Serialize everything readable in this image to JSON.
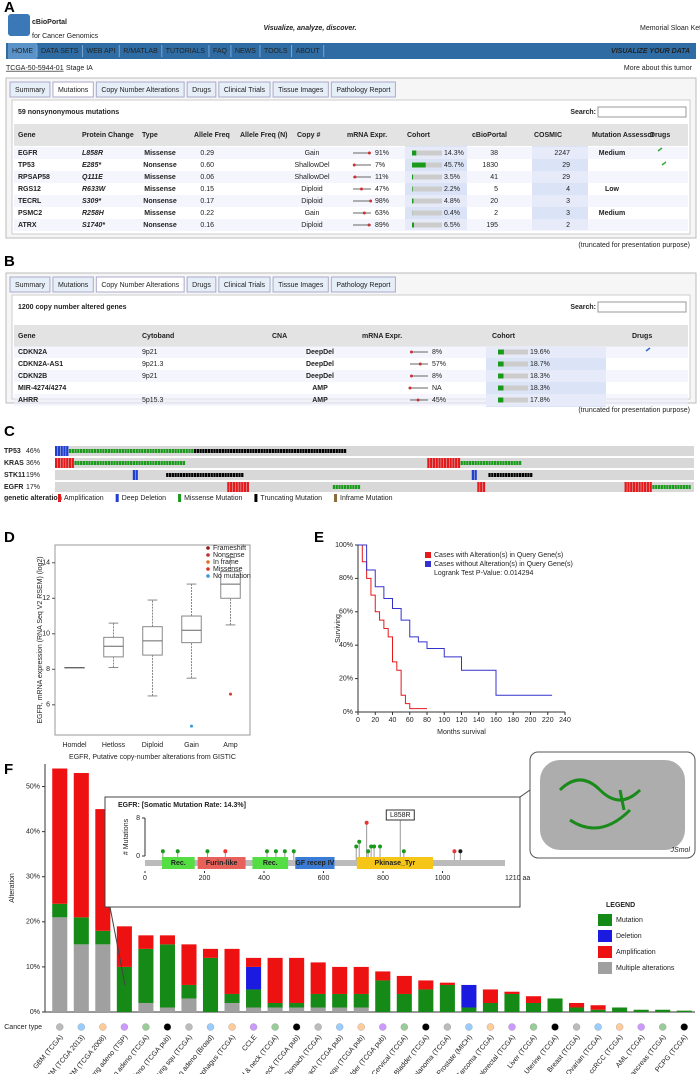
{
  "panel_a": {
    "label": "A",
    "logo": "cBioPortal",
    "logo_sub": "for Cancer Genomics",
    "tagline": "Visualize, analyze, discover.",
    "institution": "Memorial Sloan Kettering Cancer Center",
    "nav": [
      "HOME",
      "DATA SETS",
      "WEB API",
      "R/MATLAB",
      "TUTORIALS",
      "FAQ",
      "NEWS",
      "TOOLS",
      "ABOUT"
    ],
    "nav_right": "VISUALIZE YOUR DATA",
    "sample_id": "TCGA-50-5944-01",
    "stage": "Stage IA",
    "more": "More about this tumor",
    "tabs": [
      "Summary",
      "Mutations",
      "Copy Number Alterations",
      "Drugs",
      "Clinical Trials",
      "Tissue Images",
      "Pathology Report"
    ],
    "table_title": "59 nonsynonymous mutations",
    "search": "Search:",
    "columns": [
      "Gene",
      "Protein Change",
      "Type",
      "Allele Freq",
      "Allele Freq (N)",
      "Copy #",
      "mRNA Expr.",
      "Cohort",
      "cBioPortal",
      "COSMIC",
      "Mutation Assessor",
      "Drugs"
    ],
    "rows": [
      {
        "gene": "EGFR",
        "protein": "L858R",
        "type": "Missense",
        "af": "0.29",
        "copy": "Gain",
        "mrna": "91%",
        "cohort": "14.3%",
        "cbio": "38",
        "cosmic": "2247",
        "assessor": "Medium"
      },
      {
        "gene": "TP53",
        "protein": "E285*",
        "type": "Nonsense",
        "af": "0.60",
        "copy": "ShallowDel",
        "mrna": "7%",
        "cohort": "45.7%",
        "cbio": "1830",
        "cosmic": "29"
      },
      {
        "gene": "RPSAP58",
        "protein": "Q111E",
        "type": "Missense",
        "af": "0.06",
        "copy": "ShallowDel",
        "mrna": "11%",
        "cohort": "3.5%",
        "cbio": "41",
        "cosmic": "29"
      },
      {
        "gene": "RGS12",
        "protein": "R633W",
        "type": "Missense",
        "af": "0.15",
        "copy": "Diploid",
        "mrna": "47%",
        "cohort": "2.2%",
        "cbio": "5",
        "cosmic": "4",
        "assessor": "Low"
      },
      {
        "gene": "TECRL",
        "protein": "S309*",
        "type": "Nonsense",
        "af": "0.17",
        "copy": "Diploid",
        "mrna": "98%",
        "cohort": "4.8%",
        "cbio": "20",
        "cosmic": "3"
      },
      {
        "gene": "PSMC2",
        "protein": "R258H",
        "type": "Missense",
        "af": "0.22",
        "copy": "Gain",
        "mrna": "63%",
        "cohort": "0.4%",
        "cbio": "2",
        "cosmic": "3",
        "assessor": "Medium"
      },
      {
        "gene": "ATRX",
        "protein": "S1740*",
        "type": "Nonsense",
        "af": "0.16",
        "copy": "Diploid",
        "mrna": "89%",
        "cohort": "6.5%",
        "cbio": "195",
        "cosmic": "2"
      }
    ],
    "note": "(truncated for presentation purpose)"
  },
  "panel_b": {
    "label": "B",
    "tabs": [
      "Summary",
      "Mutations",
      "Copy Number Alterations",
      "Drugs",
      "Clinical Trials",
      "Tissue Images",
      "Pathology Report"
    ],
    "table_title": "1200 copy number altered genes",
    "search": "Search:",
    "columns": [
      "Gene",
      "Cytoband",
      "CNA",
      "mRNA Expr.",
      "Cohort",
      "Drugs"
    ],
    "rows": [
      {
        "gene": "CDKN2A",
        "cytoband": "9p21",
        "cna": "DeepDel",
        "mrna": "8%",
        "cohort": "19.6%"
      },
      {
        "gene": "CDKN2A-AS1",
        "cytoband": "9p21.3",
        "cna": "DeepDel",
        "mrna": "57%",
        "cohort": "18.7%"
      },
      {
        "gene": "CDKN2B",
        "cytoband": "9p21",
        "cna": "DeepDel",
        "mrna": "8%",
        "cohort": "18.3%"
      },
      {
        "gene": "MIR-4274/4274",
        "cna": "AMP",
        "mrna": "NA",
        "cohort": "18.3%"
      },
      {
        "gene": "AHRR",
        "cytoband": "5p15.3",
        "cna": "AMP",
        "mrna": "45%",
        "cohort": "17.8%"
      }
    ],
    "note": "(truncated for presentation purpose)"
  },
  "value_colors": {
    "Missense": "#1a8a1a",
    "Nonsense": "#d01010",
    "Gain": "#d01010",
    "ShallowDel": "#2040c0",
    "Diploid": "#222222",
    "DeepDel": "#1030d0",
    "AMP": "#e01010",
    "Medium": "#9a7a10",
    "Low": "#8a9a10"
  },
  "panel_c": {
    "label": "C",
    "samples": 230,
    "genes": [
      {
        "name": "TP53",
        "pct": "46%",
        "segments": [
          [
            0,
            5,
            "del"
          ],
          [
            5,
            45,
            "miss"
          ],
          [
            50,
            55,
            "trunc"
          ]
        ]
      },
      {
        "name": "KRAS",
        "pct": "36%",
        "segments": [
          [
            0,
            7,
            "amp"
          ],
          [
            7,
            40,
            "miss"
          ],
          [
            134,
            12,
            "amp"
          ],
          [
            146,
            22,
            "miss"
          ]
        ]
      },
      {
        "name": "STK11",
        "pct": "19%",
        "segments": [
          [
            28,
            2,
            "del"
          ],
          [
            40,
            28,
            "trunc"
          ],
          [
            150,
            2,
            "del"
          ],
          [
            156,
            16,
            "trunc"
          ]
        ]
      },
      {
        "name": "EGFR",
        "pct": "17%",
        "segments": [
          [
            62,
            8,
            "amp"
          ],
          [
            100,
            10,
            "miss"
          ],
          [
            152,
            3,
            "amp"
          ],
          [
            205,
            10,
            "amp"
          ],
          [
            215,
            14,
            "miss"
          ]
        ]
      }
    ],
    "legend_title": "genetic alteration",
    "legend": [
      {
        "name": "Amplification",
        "kind": "amp",
        "color": "#e41a1c"
      },
      {
        "name": "Deep Deletion",
        "kind": "del",
        "color": "#1f3fd0"
      },
      {
        "name": "Missense Mutation",
        "kind": "miss",
        "color": "#1a9a1a"
      },
      {
        "name": "Truncating Mutation",
        "kind": "trunc",
        "color": "#000000"
      },
      {
        "name": "Inframe Mutation",
        "kind": "infr",
        "color": "#8a6a3a"
      }
    ]
  },
  "chart_data": [
    {
      "type": "box",
      "label": "D",
      "ylabel": "EGFR, mRNA expression (RNA Seq V2 RSEM) (log2)",
      "xlabel": "EGFR, Putative copy-number alterations from GISTIC",
      "categories": [
        "Homdel",
        "Hetloss",
        "Diploid",
        "Gain",
        "Amp"
      ],
      "boxes": [
        {
          "min": 8.1,
          "q1": 8.1,
          "median": 8.1,
          "q3": 8.1,
          "max": 8.1
        },
        {
          "min": 8.1,
          "q1": 8.7,
          "median": 9.3,
          "q3": 9.8,
          "max": 10.6
        },
        {
          "min": 6.5,
          "q1": 8.8,
          "median": 9.6,
          "q3": 10.4,
          "max": 11.9
        },
        {
          "min": 7.5,
          "q1": 9.5,
          "median": 10.2,
          "q3": 11.0,
          "max": 12.8
        },
        {
          "min": 10.5,
          "q1": 12.0,
          "median": 12.8,
          "q3": 13.5,
          "max": 14.3
        }
      ],
      "outliers": [
        [],
        [],
        [],
        [
          4.8
        ],
        [
          6.6
        ]
      ],
      "ylim": [
        4.3,
        15
      ],
      "yticks": [
        6,
        8,
        10,
        12,
        14
      ],
      "legend": [
        {
          "name": "Frameshift",
          "color": "#8b1a1a"
        },
        {
          "name": "Nonsense",
          "color": "#c03030"
        },
        {
          "name": "In frame",
          "color": "#e07030"
        },
        {
          "name": "Missense",
          "color": "#e03020"
        },
        {
          "name": "No mutation",
          "color": "#3399dd"
        }
      ]
    },
    {
      "type": "km",
      "label": "E",
      "ylabel": "Surviving",
      "xlabel": "Months survival",
      "xlim": [
        0,
        240
      ],
      "xticks": [
        0,
        20,
        40,
        60,
        80,
        100,
        120,
        140,
        160,
        180,
        200,
        220,
        240
      ],
      "ylim": [
        0,
        100
      ],
      "yticks": [
        {
          "value": 0,
          "label": "0%"
        },
        {
          "value": 20,
          "label": "20%"
        },
        {
          "value": 40,
          "label": "40%"
        },
        {
          "value": 60,
          "label": "60%"
        },
        {
          "value": 80,
          "label": "80%"
        },
        {
          "value": 100,
          "label": "100%"
        }
      ],
      "series": [
        {
          "name": "Cases with Alteration(s) in Query Gene(s)",
          "color": "#e41a1c",
          "x": [
            0,
            5,
            10,
            15,
            20,
            25,
            30,
            35,
            40,
            45,
            50,
            55,
            60,
            80
          ],
          "values": [
            100,
            90,
            80,
            70,
            60,
            55,
            50,
            45,
            30,
            25,
            10,
            5,
            2,
            2
          ]
        },
        {
          "name": "Cases without Alteration(s) in Query Gene(s)",
          "color": "#3333cc",
          "x": [
            0,
            10,
            20,
            30,
            40,
            50,
            60,
            70,
            80,
            100,
            120,
            160,
            225
          ],
          "values": [
            100,
            85,
            75,
            68,
            62,
            55,
            45,
            42,
            38,
            33,
            25,
            10,
            10
          ]
        }
      ],
      "annotation": "Logrank Test P-Value: 0.014294"
    },
    {
      "type": "stacked_bar",
      "label": "F",
      "ylabel": "Alteration",
      "row_label": "Cancer type",
      "legend_title": "LEGEND",
      "ylim": [
        0,
        55
      ],
      "yticks": [
        {
          "value": 0,
          "label": "0%"
        },
        {
          "value": 10,
          "label": "10%"
        },
        {
          "value": 20,
          "label": "20%"
        },
        {
          "value": 30,
          "label": "30%"
        },
        {
          "value": 40,
          "label": "40%"
        },
        {
          "value": 50,
          "label": "50%"
        }
      ],
      "categories": [
        "GBM (TCGA)",
        "GBM (TCGA 2013)",
        "GBM (TCGA 2008)",
        "Lung adeno (TSP)",
        "Lung adeno (TCGA)",
        "Lung adeno (TCGA pub)",
        "Lung squ (TCGA)",
        "Lung adeno (Broad)",
        "Esophagus (TCGA)",
        "CCLE",
        "Head & neck (TCGA)",
        "Head & neck (TCGA pub)",
        "Stomach (TCGA)",
        "Stomach (TCGA pub)",
        "Lung squ (TCGA pub)",
        "Bladder (TCGA pub)",
        "Cervical (TCGA)",
        "Bladder (TCGA)",
        "Melanoma (TCGA)",
        "Prostate (MICH)",
        "Sarcoma (TCGA)",
        "Colorectal (TCGA)",
        "Liver (TCGA)",
        "Uterine (TCGA)",
        "Breast (TCGA)",
        "Ovarian (TCGA)",
        "ccRCC (TCGA)",
        "AML (TCGA)",
        "Pancreas (TCGA)",
        "PCPG (TCGA)"
      ],
      "series": [
        {
          "name": "Multiple alterations",
          "color": "#a0a0a0",
          "values": [
            21,
            15,
            15,
            0,
            2,
            1,
            3,
            0,
            2,
            1,
            1,
            1,
            1,
            1,
            1,
            0,
            0,
            0,
            0,
            0,
            0,
            0,
            0,
            0,
            0,
            0,
            0,
            0,
            0,
            0
          ]
        },
        {
          "name": "Mutation",
          "color": "#168a16",
          "values": [
            3,
            6,
            3,
            10,
            12,
            14,
            3,
            12,
            2,
            4,
            1,
            1,
            3,
            3,
            3,
            7,
            4,
            5,
            6,
            1,
            2,
            4,
            2,
            3,
            1,
            0.5,
            1,
            0.5,
            0.5,
            0.3
          ]
        },
        {
          "name": "Deletion",
          "color": "#1a1ae0",
          "values": [
            0,
            0,
            0,
            0,
            0,
            0,
            0,
            0,
            0,
            5,
            0,
            0,
            0,
            0,
            0,
            0,
            0,
            0,
            0,
            5,
            0,
            0,
            0,
            0,
            0,
            0,
            0,
            0,
            0,
            0
          ]
        },
        {
          "name": "Amplification",
          "color": "#ee1111",
          "values": [
            30,
            32,
            27,
            9,
            3,
            2,
            9,
            2,
            10,
            2,
            10,
            10,
            7,
            6,
            6,
            2,
            4,
            2,
            0.5,
            0,
            3,
            0.5,
            1.5,
            0,
            1,
            1,
            0,
            0,
            0,
            0
          ]
        }
      ],
      "legend_order": [
        1,
        2,
        3,
        0
      ],
      "inset": {
        "title": "EGFR: [Somatic Mutation Rate: 14.3%]",
        "ylabel": "# Mutations",
        "ylim": [
          0,
          8
        ],
        "yticks": [
          0,
          8
        ],
        "xlim": [
          0,
          1210
        ],
        "xticks": [
          0,
          200,
          400,
          600,
          800,
          1000
        ],
        "end_label": "1210 aa",
        "annotation": "L858R",
        "domains": [
          {
            "name": "Rec.",
            "start": 57,
            "end": 167,
            "color": "#55dd44"
          },
          {
            "name": "Furin-like",
            "start": 177,
            "end": 338,
            "color": "#e8605a"
          },
          {
            "name": "Rec.",
            "start": 361,
            "end": 481,
            "color": "#55dd44"
          },
          {
            "name": "GF recep IV",
            "start": 505,
            "end": 637,
            "color": "#3a7cd5"
          },
          {
            "name": "Pkinase_Tyr",
            "start": 712,
            "end": 968,
            "color": "#f5c518"
          }
        ],
        "positions": [
          60,
          110,
          210,
          270,
          410,
          440,
          470,
          500,
          710,
          720,
          745,
          750,
          760,
          770,
          790,
          858,
          870,
          1040,
          1060
        ],
        "counts": [
          1,
          1,
          1,
          1,
          1,
          1,
          1,
          1,
          2,
          3,
          7,
          1,
          2,
          2,
          2,
          8,
          1,
          1,
          1
        ]
      },
      "structure_label": "JSmol"
    }
  ]
}
